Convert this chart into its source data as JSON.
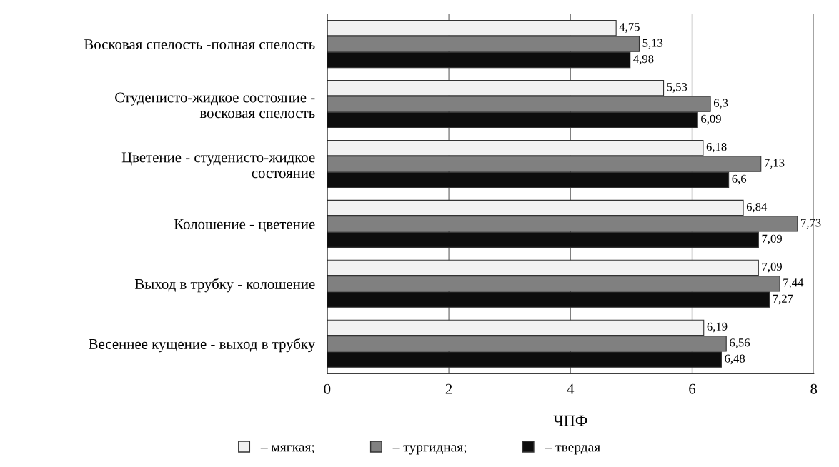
{
  "chart_data": {
    "type": "bar",
    "orientation": "horizontal",
    "xlabel": "ЧПФ",
    "categories": [
      "Восковая спелость -полная спелость",
      "Студенисто-жидкое состояние -\nвосковая спелость",
      "Цветение - студенисто-жидкое\nсостояние",
      "Колошение - цветение",
      "Выход в трубку - колошение",
      "Весеннее кущение - выход в трубку"
    ],
    "series": [
      {
        "name": "– мягкая;",
        "color": "#f2f2f2",
        "values": [
          4.75,
          5.53,
          6.18,
          6.84,
          7.09,
          6.19
        ],
        "value_labels": [
          "4,75",
          "5,53",
          "6,18",
          "6,84",
          "7,09",
          "6,19"
        ]
      },
      {
        "name": "– тургидная;",
        "color": "#808080",
        "values": [
          5.13,
          6.3,
          7.13,
          7.73,
          7.44,
          6.56
        ],
        "value_labels": [
          "5,13",
          "6,3",
          "7,13",
          "7,73",
          "7,44",
          "6,56"
        ]
      },
      {
        "name": "– твердая",
        "color": "#0d0d0d",
        "values": [
          4.98,
          6.09,
          6.6,
          7.09,
          7.27,
          6.48
        ],
        "value_labels": [
          "4,98",
          "6,09",
          "6,6",
          "7,09",
          "7,27",
          "6,48"
        ]
      }
    ],
    "xlim": [
      0,
      8
    ],
    "xticks": [
      0,
      2,
      4,
      6,
      8
    ],
    "grid": "x",
    "legend": "bottom"
  }
}
